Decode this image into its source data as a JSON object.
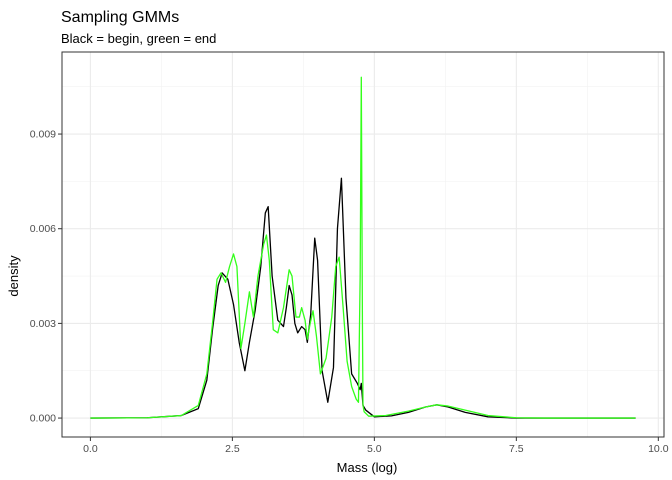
{
  "chart_data": {
    "type": "line",
    "title": "Sampling GMMs",
    "subtitle": "Black = begin, green = end",
    "xlabel": "Mass (log)",
    "ylabel": "density",
    "xlim": [
      -0.5,
      10.1
    ],
    "ylim": [
      -0.0006,
      0.0116
    ],
    "x_ticks": [
      0.0,
      2.5,
      5.0,
      7.5,
      10.0
    ],
    "x_tick_labels": [
      "0.0",
      "2.5",
      "5.0",
      "7.5",
      "10.0"
    ],
    "y_ticks": [
      0.0,
      0.003,
      0.006,
      0.009
    ],
    "y_tick_labels": [
      "0.000",
      "0.003",
      "0.006",
      "0.009"
    ],
    "grid": true,
    "legend": "none",
    "series": [
      {
        "color": "#000000",
        "x": [
          0.0,
          1.0,
          1.6,
          1.9,
          2.05,
          2.15,
          2.25,
          2.32,
          2.42,
          2.52,
          2.62,
          2.72,
          2.8,
          2.9,
          3.0,
          3.08,
          3.13,
          3.2,
          3.3,
          3.4,
          3.45,
          3.5,
          3.55,
          3.6,
          3.65,
          3.72,
          3.78,
          3.82,
          3.88,
          3.95,
          4.0,
          4.08,
          4.18,
          4.28,
          4.35,
          4.42,
          4.5,
          4.6,
          4.7,
          4.75,
          4.77,
          4.8,
          4.85,
          5.0,
          5.3,
          5.6,
          5.9,
          6.1,
          6.3,
          6.6,
          7.0,
          7.5,
          8.0,
          9.0,
          9.6
        ],
        "y": [
          0.0,
          1e-05,
          8e-05,
          0.0003,
          0.0012,
          0.0028,
          0.0042,
          0.0046,
          0.0044,
          0.0036,
          0.0024,
          0.0015,
          0.0024,
          0.0034,
          0.0048,
          0.0065,
          0.0067,
          0.0045,
          0.0031,
          0.0029,
          0.0035,
          0.0042,
          0.0039,
          0.003,
          0.0027,
          0.0029,
          0.0028,
          0.0024,
          0.0033,
          0.0057,
          0.005,
          0.0015,
          0.0005,
          0.0016,
          0.006,
          0.0076,
          0.0038,
          0.0014,
          0.0011,
          0.0009,
          0.0011,
          0.0004,
          0.00025,
          4e-05,
          7e-05,
          0.00018,
          0.00035,
          0.00042,
          0.00035,
          0.00018,
          4e-05,
          0.0,
          0.0,
          0.0,
          0.0
        ]
      },
      {
        "color": "#33ff1a",
        "x": [
          0.0,
          1.0,
          1.6,
          1.9,
          2.05,
          2.15,
          2.23,
          2.3,
          2.38,
          2.45,
          2.52,
          2.58,
          2.65,
          2.72,
          2.8,
          2.87,
          2.95,
          3.05,
          3.1,
          3.15,
          3.22,
          3.3,
          3.4,
          3.5,
          3.55,
          3.62,
          3.68,
          3.72,
          3.78,
          3.82,
          3.87,
          3.92,
          3.98,
          4.05,
          4.15,
          4.25,
          4.32,
          4.38,
          4.45,
          4.52,
          4.6,
          4.68,
          4.72,
          4.75,
          4.77,
          4.79,
          4.8,
          4.82,
          4.9,
          5.2,
          5.6,
          5.9,
          6.1,
          6.3,
          6.6,
          7.0,
          7.5,
          8.0,
          9.0,
          9.6
        ],
        "y": [
          0.0,
          1e-05,
          8e-05,
          0.0004,
          0.0014,
          0.003,
          0.0044,
          0.0046,
          0.0043,
          0.0048,
          0.0052,
          0.0048,
          0.0022,
          0.003,
          0.004,
          0.0032,
          0.0045,
          0.0055,
          0.0058,
          0.005,
          0.0028,
          0.0027,
          0.0035,
          0.0047,
          0.0045,
          0.0032,
          0.0032,
          0.0035,
          0.0031,
          0.0025,
          0.003,
          0.0034,
          0.0026,
          0.0014,
          0.0019,
          0.0032,
          0.0048,
          0.0051,
          0.0035,
          0.0018,
          0.001,
          0.0006,
          0.0005,
          0.0045,
          0.0108,
          0.003,
          0.0004,
          0.0002,
          6e-05,
          8e-05,
          0.00022,
          0.00035,
          0.00042,
          0.00038,
          0.00025,
          8e-05,
          1e-05,
          0.0,
          0.0,
          0.0
        ]
      }
    ]
  }
}
